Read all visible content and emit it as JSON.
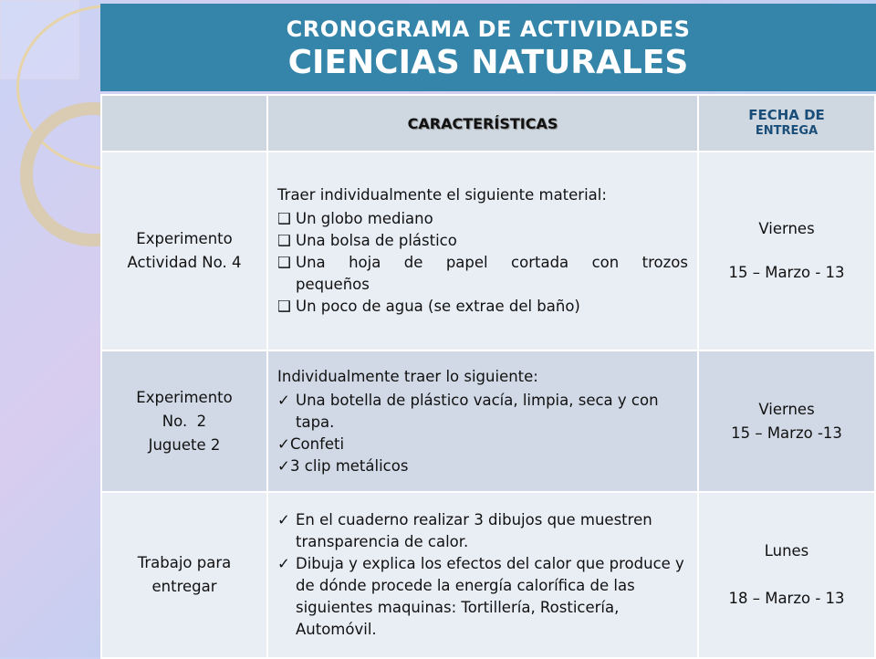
{
  "title": {
    "line1": "CRONOGRAMA DE ACTIVIDADES",
    "line2": "CIENCIAS NATURALES"
  },
  "header": {
    "col1": "",
    "col2": "CARACTERÍSTICAS",
    "col3_line1": "FECHA DE",
    "col3_line2": "ENTREGA"
  },
  "rows": [
    {
      "activity": [
        "Experimento",
        "Actividad No. 4"
      ],
      "intro": "Traer individualmente el siguiente material:",
      "bullet": "checkbox",
      "items": [
        "Un globo mediano",
        "Una bolsa de plástico",
        "Una hoja de papel cortada con trozos",
        "pequeños",
        "Un poco de agua (se extrae del baño)"
      ],
      "date": [
        "Viernes",
        "15 – Marzo - 13"
      ]
    },
    {
      "activity": [
        "Experimento",
        "No.  2",
        "Juguete 2"
      ],
      "intro": "Individualmente traer lo siguiente:",
      "bullet": "checkmark",
      "items": [
        "Una botella de plástico vacía, limpia, seca y con tapa.",
        "Confeti",
        "3 clip metálicos"
      ],
      "date": [
        "Viernes",
        "15 – Marzo -13"
      ]
    },
    {
      "activity": [
        "Trabajo para",
        "entregar"
      ],
      "bullet": "checkmark",
      "items": [
        "En el cuaderno realizar 3 dibujos que muestren transparencia de calor.",
        "Dibuja y explica los efectos del calor que produce y de dónde procede la energía calorífica de las siguientes maquinas: Tortillería, Rosticería, Automóvil."
      ],
      "date": [
        "Lunes",
        "18 – Marzo - 13"
      ]
    }
  ],
  "colors": {
    "title_bg": "#3485a9",
    "header_bg": "#cfd8e1",
    "row_light": "#e9edf4",
    "row_dark": "#d0d9e5",
    "date_header": "#1a4e78"
  }
}
